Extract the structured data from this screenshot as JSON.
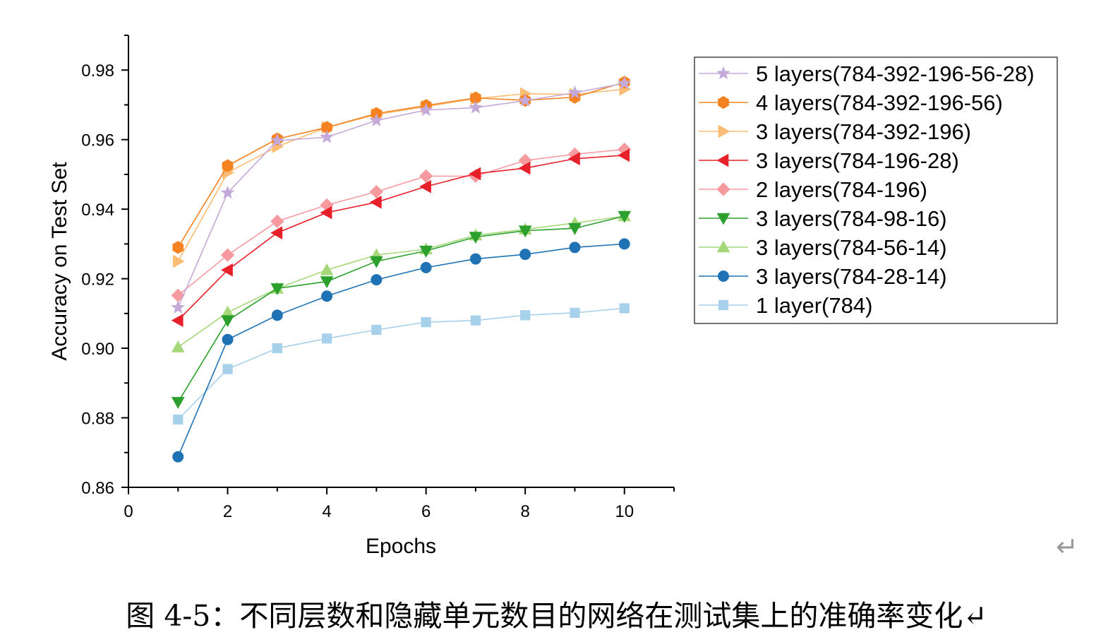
{
  "chart_data": {
    "type": "line",
    "xlabel": "Epochs",
    "ylabel": "Accuracy on Test Set",
    "xlim": [
      0,
      11
    ],
    "ylim": [
      0.86,
      0.99
    ],
    "xticks": [
      0,
      2,
      4,
      6,
      8,
      10
    ],
    "yticks": [
      0.86,
      0.88,
      0.9,
      0.92,
      0.94,
      0.96,
      0.98
    ],
    "xtick_labels": [
      "0",
      "2",
      "4",
      "6",
      "8",
      "10"
    ],
    "ytick_labels": [
      "0.86",
      "0.88",
      "0.90",
      "0.92",
      "0.94",
      "0.96",
      "0.98"
    ],
    "x": [
      1,
      2,
      3,
      4,
      5,
      6,
      7,
      8,
      9,
      10
    ],
    "legend_position": "right",
    "series": [
      {
        "name": "5 layers(784-392-196-56-28)",
        "color": "#c5a9d9",
        "marker": "star",
        "values": [
          0.9117,
          0.9447,
          0.9597,
          0.9607,
          0.9655,
          0.9685,
          0.9692,
          0.9712,
          0.9735,
          0.9762
        ]
      },
      {
        "name": "4 layers(784-392-196-56)",
        "color": "#f58220",
        "marker": "hexagon",
        "values": [
          0.929,
          0.9525,
          0.9602,
          0.9635,
          0.9675,
          0.9698,
          0.972,
          0.9713,
          0.9722,
          0.9765
        ]
      },
      {
        "name": "3 layers(784-392-196)",
        "color": "#fbbd74",
        "marker": "triangle-right",
        "values": [
          0.925,
          0.9505,
          0.958,
          0.9635,
          0.9672,
          0.9695,
          0.9718,
          0.9732,
          0.973,
          0.9745
        ]
      },
      {
        "name": "3 layers(784-196-28)",
        "color": "#e8202a",
        "marker": "triangle-left",
        "values": [
          0.908,
          0.9225,
          0.9332,
          0.939,
          0.942,
          0.9465,
          0.9502,
          0.9518,
          0.9545,
          0.9555
        ]
      },
      {
        "name": "2 layers(784-196)",
        "color": "#f79aa0",
        "marker": "diamond",
        "values": [
          0.9152,
          0.9268,
          0.9365,
          0.9412,
          0.945,
          0.9495,
          0.9495,
          0.954,
          0.9558,
          0.9572
        ]
      },
      {
        "name": "3 layers(784-98-16)",
        "color": "#2ca02c",
        "marker": "triangle-down",
        "values": [
          0.8845,
          0.908,
          0.9172,
          0.9192,
          0.925,
          0.928,
          0.932,
          0.9338,
          0.9345,
          0.938
        ]
      },
      {
        "name": "3 layers(784-56-14)",
        "color": "#a6d87a",
        "marker": "triangle-up",
        "values": [
          0.9003,
          0.9103,
          0.9172,
          0.9225,
          0.9268,
          0.9285,
          0.9325,
          0.9342,
          0.936,
          0.938
        ]
      },
      {
        "name": "3 layers(784-28-14)",
        "color": "#1f73b4",
        "marker": "circle",
        "values": [
          0.8688,
          0.9025,
          0.9095,
          0.915,
          0.9197,
          0.9232,
          0.9257,
          0.927,
          0.929,
          0.93
        ]
      },
      {
        "name": "1 layer(784)",
        "color": "#a7d0eb",
        "marker": "square",
        "values": [
          0.8795,
          0.894,
          0.9,
          0.9028,
          0.9053,
          0.9075,
          0.908,
          0.9095,
          0.9102,
          0.9115
        ]
      }
    ]
  },
  "caption": "图 4-5：不同层数和隐藏单元数目的网络在测试集上的准确率变化↵",
  "return_mark": "↵"
}
